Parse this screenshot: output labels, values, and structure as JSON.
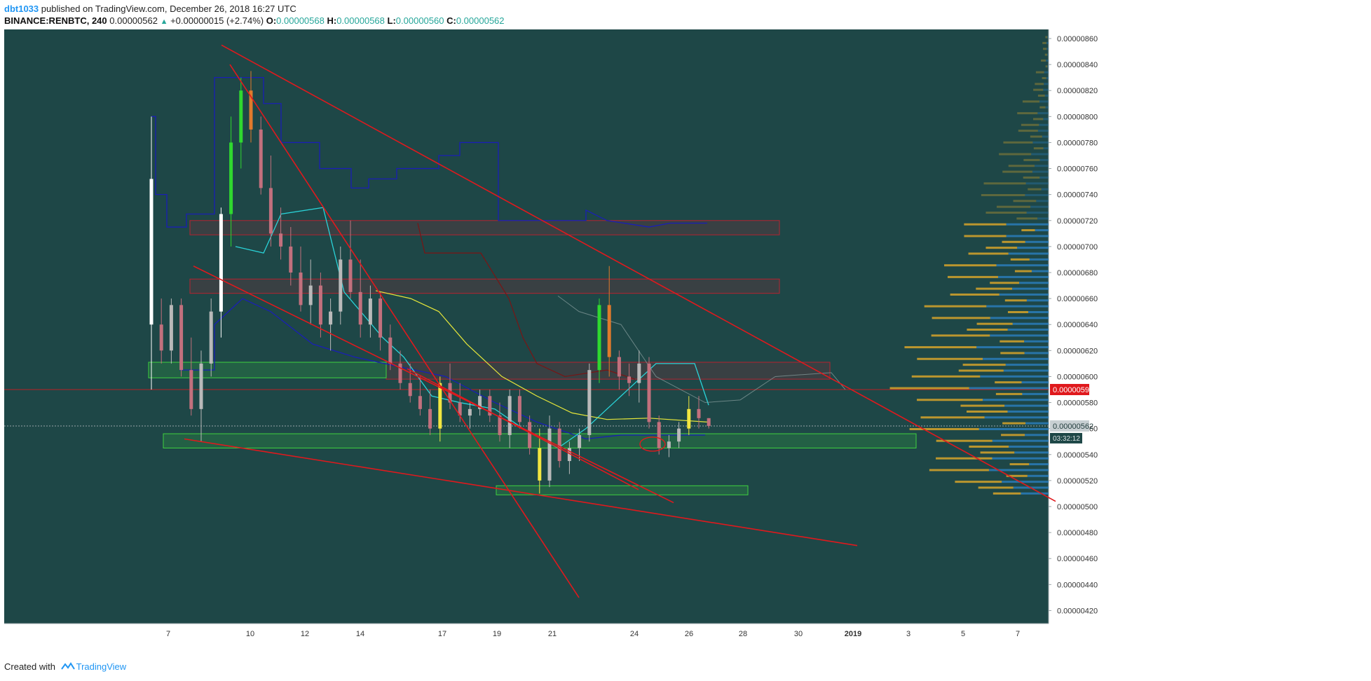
{
  "header": {
    "author": "dbt1033",
    "published_text": "published on TradingView.com, December 26, 2018 16:27 UTC",
    "symbol": "BINANCE:RENBTC, 240",
    "last": "0.00000562",
    "change": "+0.00000015 (+2.74%)",
    "o_label": "O:",
    "o_value": "0.00000568",
    "h_label": "H:",
    "h_value": "0.00000568",
    "l_label": "L:",
    "l_value": "0.00000560",
    "c_label": "C:",
    "c_value": "0.00000562"
  },
  "footer": {
    "created_with": "Created with",
    "brand": "TradingView"
  },
  "colors": {
    "background": "#1e4747",
    "bull": "#b9b9b9",
    "bear": "#c2707d",
    "trendline": "#e0191d",
    "zone_red": "#b52330",
    "zone_green": "#3fd13f",
    "kijun": "#1a1fb5",
    "tenkan": "#2ad3d8",
    "sma": "#e6e63a",
    "lagging": "#7a1414",
    "vp_gold": "#d7a52a",
    "vp_blue": "#2a7fc0",
    "price_label_red": "#e0191d",
    "price_label_current": "#c7cfd2"
  },
  "chart_data": {
    "type": "candlestick",
    "title": "BINANCE:RENBTC, 240",
    "ylim": [
      4.1e-06,
      8.67e-06
    ],
    "x_ticks": [
      "7",
      "10",
      "12",
      "14",
      "17",
      "19",
      "21",
      "24",
      "26",
      "28",
      "30",
      "2019",
      "3",
      "5",
      "7"
    ],
    "y_ticks": [
      "0.00000860",
      "0.00000840",
      "0.00000820",
      "0.00000800",
      "0.00000780",
      "0.00000760",
      "0.00000740",
      "0.00000720",
      "0.00000700",
      "0.00000680",
      "0.00000660",
      "0.00000640",
      "0.00000620",
      "0.00000600",
      "0.00000580",
      "0.00000560",
      "0.00000540",
      "0.00000520",
      "0.00000500",
      "0.00000480",
      "0.00000460",
      "0.00000440",
      "0.00000420"
    ],
    "last_price_label": "0.00000562",
    "countdown_label": "03:32:12",
    "marked_price_label": "0.00000590",
    "marked_price": 5.9e-06,
    "last_price": 5.62e-06,
    "candles": [
      [
        7.52e-06,
        8e-06,
        5.9e-06,
        6.4e-06
      ],
      [
        6.4e-06,
        6.6e-06,
        6.1e-06,
        6.2e-06
      ],
      [
        6.2e-06,
        6.6e-06,
        6.1e-06,
        6.55e-06
      ],
      [
        6.55e-06,
        6.6e-06,
        6e-06,
        6.05e-06
      ],
      [
        6.05e-06,
        6.3e-06,
        5.7e-06,
        5.75e-06
      ],
      [
        5.75e-06,
        6.2e-06,
        5.5e-06,
        6.1e-06
      ],
      [
        6.1e-06,
        6.6e-06,
        6e-06,
        6.5e-06
      ],
      [
        6.5e-06,
        7.3e-06,
        6.3e-06,
        7.25e-06
      ],
      [
        7.25e-06,
        8e-06,
        7e-06,
        7.8e-06
      ],
      [
        7.8e-06,
        8.3e-06,
        7.6e-06,
        8.2e-06
      ],
      [
        8.2e-06,
        8.35e-06,
        7.8e-06,
        7.9e-06
      ],
      [
        7.9e-06,
        8e-06,
        7.4e-06,
        7.45e-06
      ],
      [
        7.45e-06,
        7.7e-06,
        7e-06,
        7.1e-06
      ],
      [
        7.1e-06,
        7.3e-06,
        6.9e-06,
        7e-06
      ],
      [
        7e-06,
        7.15e-06,
        6.7e-06,
        6.8e-06
      ],
      [
        6.8e-06,
        7e-06,
        6.5e-06,
        6.55e-06
      ],
      [
        6.55e-06,
        6.9e-06,
        6.4e-06,
        6.7e-06
      ],
      [
        6.7e-06,
        6.8e-06,
        6.3e-06,
        6.4e-06
      ],
      [
        6.4e-06,
        6.6e-06,
        6.2e-06,
        6.5e-06
      ],
      [
        6.5e-06,
        7e-06,
        6.4e-06,
        6.9e-06
      ],
      [
        6.9e-06,
        7.2e-06,
        6.6e-06,
        6.65e-06
      ],
      [
        6.65e-06,
        6.9e-06,
        6.3e-06,
        6.4e-06
      ],
      [
        6.4e-06,
        6.7e-06,
        6.3e-06,
        6.6e-06
      ],
      [
        6.6e-06,
        6.65e-06,
        6.2e-06,
        6.3e-06
      ],
      [
        6.3e-06,
        6.4e-06,
        6.05e-06,
        6.1e-06
      ],
      [
        6.1e-06,
        6.2e-06,
        5.9e-06,
        5.95e-06
      ],
      [
        5.95e-06,
        6.1e-06,
        5.8e-06,
        5.85e-06
      ],
      [
        5.85e-06,
        6e-06,
        5.7e-06,
        5.75e-06
      ],
      [
        5.75e-06,
        5.9e-06,
        5.55e-06,
        5.6e-06
      ],
      [
        5.6e-06,
        6e-06,
        5.5e-06,
        5.95e-06
      ],
      [
        5.95e-06,
        6.1e-06,
        5.75e-06,
        5.8e-06
      ],
      [
        5.8e-06,
        5.95e-06,
        5.65e-06,
        5.7e-06
      ],
      [
        5.7e-06,
        5.8e-06,
        5.6e-06,
        5.75e-06
      ],
      [
        5.75e-06,
        5.9e-06,
        5.7e-06,
        5.85e-06
      ],
      [
        5.85e-06,
        5.9e-06,
        5.65e-06,
        5.7e-06
      ],
      [
        5.7e-06,
        5.8e-06,
        5.5e-06,
        5.55e-06
      ],
      [
        5.55e-06,
        5.9e-06,
        5.45e-06,
        5.85e-06
      ],
      [
        5.85e-06,
        5.9e-06,
        5.6e-06,
        5.65e-06
      ],
      [
        5.65e-06,
        5.7e-06,
        5.4e-06,
        5.45e-06
      ],
      [
        5.45e-06,
        5.6e-06,
        5.1e-06,
        5.2e-06
      ],
      [
        5.2e-06,
        5.7e-06,
        5.15e-06,
        5.6e-06
      ],
      [
        5.6e-06,
        5.65e-06,
        5.3e-06,
        5.35e-06
      ],
      [
        5.35e-06,
        5.5e-06,
        5.25e-06,
        5.45e-06
      ],
      [
        5.45e-06,
        5.6e-06,
        5.35e-06,
        5.55e-06
      ],
      [
        5.55e-06,
        6.1e-06,
        5.5e-06,
        6.05e-06
      ],
      [
        6.05e-06,
        6.6e-06,
        5.95e-06,
        6.55e-06
      ],
      [
        6.55e-06,
        6.85e-06,
        6e-06,
        6.15e-06
      ],
      [
        6.15e-06,
        6.2e-06,
        5.9e-06,
        6e-06
      ],
      [
        6e-06,
        6.1e-06,
        5.85e-06,
        5.95e-06
      ],
      [
        5.95e-06,
        6.2e-06,
        5.8e-06,
        6.1e-06
      ],
      [
        6.1e-06,
        6.15e-06,
        5.6e-06,
        5.65e-06
      ],
      [
        5.65e-06,
        5.7e-06,
        5.4e-06,
        5.45e-06
      ],
      [
        5.45e-06,
        5.55e-06,
        5.38e-06,
        5.5e-06
      ],
      [
        5.5e-06,
        5.65e-06,
        5.45e-06,
        5.6e-06
      ],
      [
        5.6e-06,
        5.85e-06,
        5.55e-06,
        5.75e-06
      ],
      [
        5.75e-06,
        5.85e-06,
        5.6e-06,
        5.68e-06
      ],
      [
        5.68e-06,
        5.68e-06,
        5.6e-06,
        5.62e-06
      ]
    ]
  }
}
